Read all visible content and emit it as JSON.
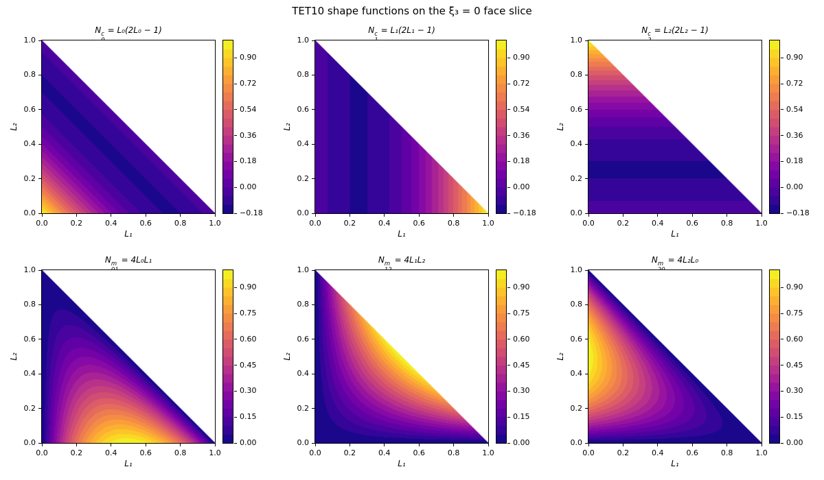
{
  "figure_title": "TET10 shape functions on the ξ₃ = 0 face slice",
  "plasma_colormap": [
    "#0d0887",
    "#41049d",
    "#6a00a8",
    "#8f0da4",
    "#b12a90",
    "#cc4778",
    "#e16462",
    "#f2844b",
    "#fca636",
    "#fcce25",
    "#f0f921"
  ],
  "chart_data": [
    {
      "type": "heatmap",
      "plot_kind": "filled-contour-on-triangle",
      "colormap": "plasma",
      "title": {
        "var": "N",
        "sub": "0",
        "sup": "c",
        "rhs": "= L₀(2L₀ − 1)"
      },
      "formula": "N = L0(2L0 - 1), L0 = 1 - L1 - L2",
      "kind": "corner",
      "node": 0,
      "xlabel": "L₁",
      "ylabel": "L₂",
      "xlim": [
        0.0,
        1.0
      ],
      "ylim": [
        0.0,
        1.0
      ],
      "xtick_labels": [
        "0.0",
        "0.2",
        "0.4",
        "0.6",
        "0.8",
        "1.0"
      ],
      "ytick_labels": [
        "0.0",
        "0.2",
        "0.4",
        "0.6",
        "0.8",
        "1.0"
      ],
      "value_range": [
        -0.125,
        1.0
      ],
      "levels": {
        "min": -0.18,
        "step": 0.06,
        "n": 20
      },
      "colorbar_ticks": [
        {
          "label": "0.90",
          "v": 0.9
        },
        {
          "label": "0.72",
          "v": 0.72
        },
        {
          "label": "0.54",
          "v": 0.54
        },
        {
          "label": "0.36",
          "v": 0.36
        },
        {
          "label": "0.18",
          "v": 0.18
        },
        {
          "label": "0.00",
          "v": 0.0
        },
        {
          "label": "−0.18",
          "v": -0.18
        }
      ]
    },
    {
      "type": "heatmap",
      "plot_kind": "filled-contour-on-triangle",
      "colormap": "plasma",
      "title": {
        "var": "N",
        "sub": "1",
        "sup": "c",
        "rhs": "= L₁(2L₁ − 1)"
      },
      "formula": "N = L1(2L1 - 1)",
      "kind": "corner",
      "node": 1,
      "xlabel": "L₁",
      "ylabel": "L₂",
      "xlim": [
        0.0,
        1.0
      ],
      "ylim": [
        0.0,
        1.0
      ],
      "xtick_labels": [
        "0.0",
        "0.2",
        "0.4",
        "0.6",
        "0.8",
        "1.0"
      ],
      "ytick_labels": [
        "0.0",
        "0.2",
        "0.4",
        "0.6",
        "0.8",
        "1.0"
      ],
      "value_range": [
        -0.125,
        1.0
      ],
      "levels": {
        "min": -0.18,
        "step": 0.06,
        "n": 20
      },
      "colorbar_ticks": [
        {
          "label": "0.90",
          "v": 0.9
        },
        {
          "label": "0.72",
          "v": 0.72
        },
        {
          "label": "0.54",
          "v": 0.54
        },
        {
          "label": "0.36",
          "v": 0.36
        },
        {
          "label": "0.18",
          "v": 0.18
        },
        {
          "label": "0.00",
          "v": 0.0
        },
        {
          "label": "−0.18",
          "v": -0.18
        }
      ]
    },
    {
      "type": "heatmap",
      "plot_kind": "filled-contour-on-triangle",
      "colormap": "plasma",
      "title": {
        "var": "N",
        "sub": "2",
        "sup": "c",
        "rhs": "= L₂(2L₂ − 1)"
      },
      "formula": "N = L2(2L2 - 1)",
      "kind": "corner",
      "node": 2,
      "xlabel": "L₁",
      "ylabel": "L₂",
      "xlim": [
        0.0,
        1.0
      ],
      "ylim": [
        0.0,
        1.0
      ],
      "xtick_labels": [
        "0.0",
        "0.2",
        "0.4",
        "0.6",
        "0.8",
        "1.0"
      ],
      "ytick_labels": [
        "0.0",
        "0.2",
        "0.4",
        "0.6",
        "0.8",
        "1.0"
      ],
      "value_range": [
        -0.125,
        1.0
      ],
      "levels": {
        "min": -0.18,
        "step": 0.06,
        "n": 20
      },
      "colorbar_ticks": [
        {
          "label": "0.90",
          "v": 0.9
        },
        {
          "label": "0.72",
          "v": 0.72
        },
        {
          "label": "0.54",
          "v": 0.54
        },
        {
          "label": "0.36",
          "v": 0.36
        },
        {
          "label": "0.18",
          "v": 0.18
        },
        {
          "label": "0.00",
          "v": 0.0
        },
        {
          "label": "−0.18",
          "v": -0.18
        }
      ]
    },
    {
      "type": "heatmap",
      "plot_kind": "filled-contour-on-triangle",
      "colormap": "plasma",
      "title": {
        "var": "N",
        "sub": "01",
        "sup": "m",
        "rhs": "= 4L₀L₁"
      },
      "formula": "N = 4 L0 L1",
      "kind": "mid",
      "nodes": [
        0,
        1
      ],
      "xlabel": "L₁",
      "ylabel": "L₂",
      "xlim": [
        0.0,
        1.0
      ],
      "ylim": [
        0.0,
        1.0
      ],
      "xtick_labels": [
        "0.0",
        "0.2",
        "0.4",
        "0.6",
        "0.8",
        "1.0"
      ],
      "ytick_labels": [
        "0.0",
        "0.2",
        "0.4",
        "0.6",
        "0.8",
        "1.0"
      ],
      "value_range": [
        0.0,
        1.0
      ],
      "levels": {
        "min": 0.0,
        "step": 0.05,
        "n": 20
      },
      "colorbar_ticks": [
        {
          "label": "0.90",
          "v": 0.9
        },
        {
          "label": "0.75",
          "v": 0.75
        },
        {
          "label": "0.60",
          "v": 0.6
        },
        {
          "label": "0.45",
          "v": 0.45
        },
        {
          "label": "0.30",
          "v": 0.3
        },
        {
          "label": "0.15",
          "v": 0.15
        },
        {
          "label": "0.00",
          "v": 0.0
        }
      ]
    },
    {
      "type": "heatmap",
      "plot_kind": "filled-contour-on-triangle",
      "colormap": "plasma",
      "title": {
        "var": "N",
        "sub": "12",
        "sup": "m",
        "rhs": "= 4L₁L₂"
      },
      "formula": "N = 4 L1 L2",
      "kind": "mid",
      "nodes": [
        1,
        2
      ],
      "xlabel": "L₁",
      "ylabel": "L₂",
      "xlim": [
        0.0,
        1.0
      ],
      "ylim": [
        0.0,
        1.0
      ],
      "xtick_labels": [
        "0.0",
        "0.2",
        "0.4",
        "0.6",
        "0.8",
        "1.0"
      ],
      "ytick_labels": [
        "0.0",
        "0.2",
        "0.4",
        "0.6",
        "0.8",
        "1.0"
      ],
      "value_range": [
        0.0,
        1.0
      ],
      "levels": {
        "min": 0.0,
        "step": 0.05,
        "n": 20
      },
      "colorbar_ticks": [
        {
          "label": "0.90",
          "v": 0.9
        },
        {
          "label": "0.75",
          "v": 0.75
        },
        {
          "label": "0.60",
          "v": 0.6
        },
        {
          "label": "0.45",
          "v": 0.45
        },
        {
          "label": "0.30",
          "v": 0.3
        },
        {
          "label": "0.15",
          "v": 0.15
        },
        {
          "label": "0.00",
          "v": 0.0
        }
      ]
    },
    {
      "type": "heatmap",
      "plot_kind": "filled-contour-on-triangle",
      "colormap": "plasma",
      "title": {
        "var": "N",
        "sub": "20",
        "sup": "m",
        "rhs": "= 4L₂L₀"
      },
      "formula": "N = 4 L2 L0",
      "kind": "mid",
      "nodes": [
        2,
        0
      ],
      "xlabel": "L₁",
      "ylabel": "L₂",
      "xlim": [
        0.0,
        1.0
      ],
      "ylim": [
        0.0,
        1.0
      ],
      "xtick_labels": [
        "0.0",
        "0.2",
        "0.4",
        "0.6",
        "0.8",
        "1.0"
      ],
      "ytick_labels": [
        "0.0",
        "0.2",
        "0.4",
        "0.6",
        "0.8",
        "1.0"
      ],
      "value_range": [
        0.0,
        1.0
      ],
      "levels": {
        "min": 0.0,
        "step": 0.05,
        "n": 20
      },
      "colorbar_ticks": [
        {
          "label": "0.90",
          "v": 0.9
        },
        {
          "label": "0.75",
          "v": 0.75
        },
        {
          "label": "0.60",
          "v": 0.6
        },
        {
          "label": "0.45",
          "v": 0.45
        },
        {
          "label": "0.30",
          "v": 0.3
        },
        {
          "label": "0.15",
          "v": 0.15
        },
        {
          "label": "0.00",
          "v": 0.0
        }
      ]
    }
  ]
}
